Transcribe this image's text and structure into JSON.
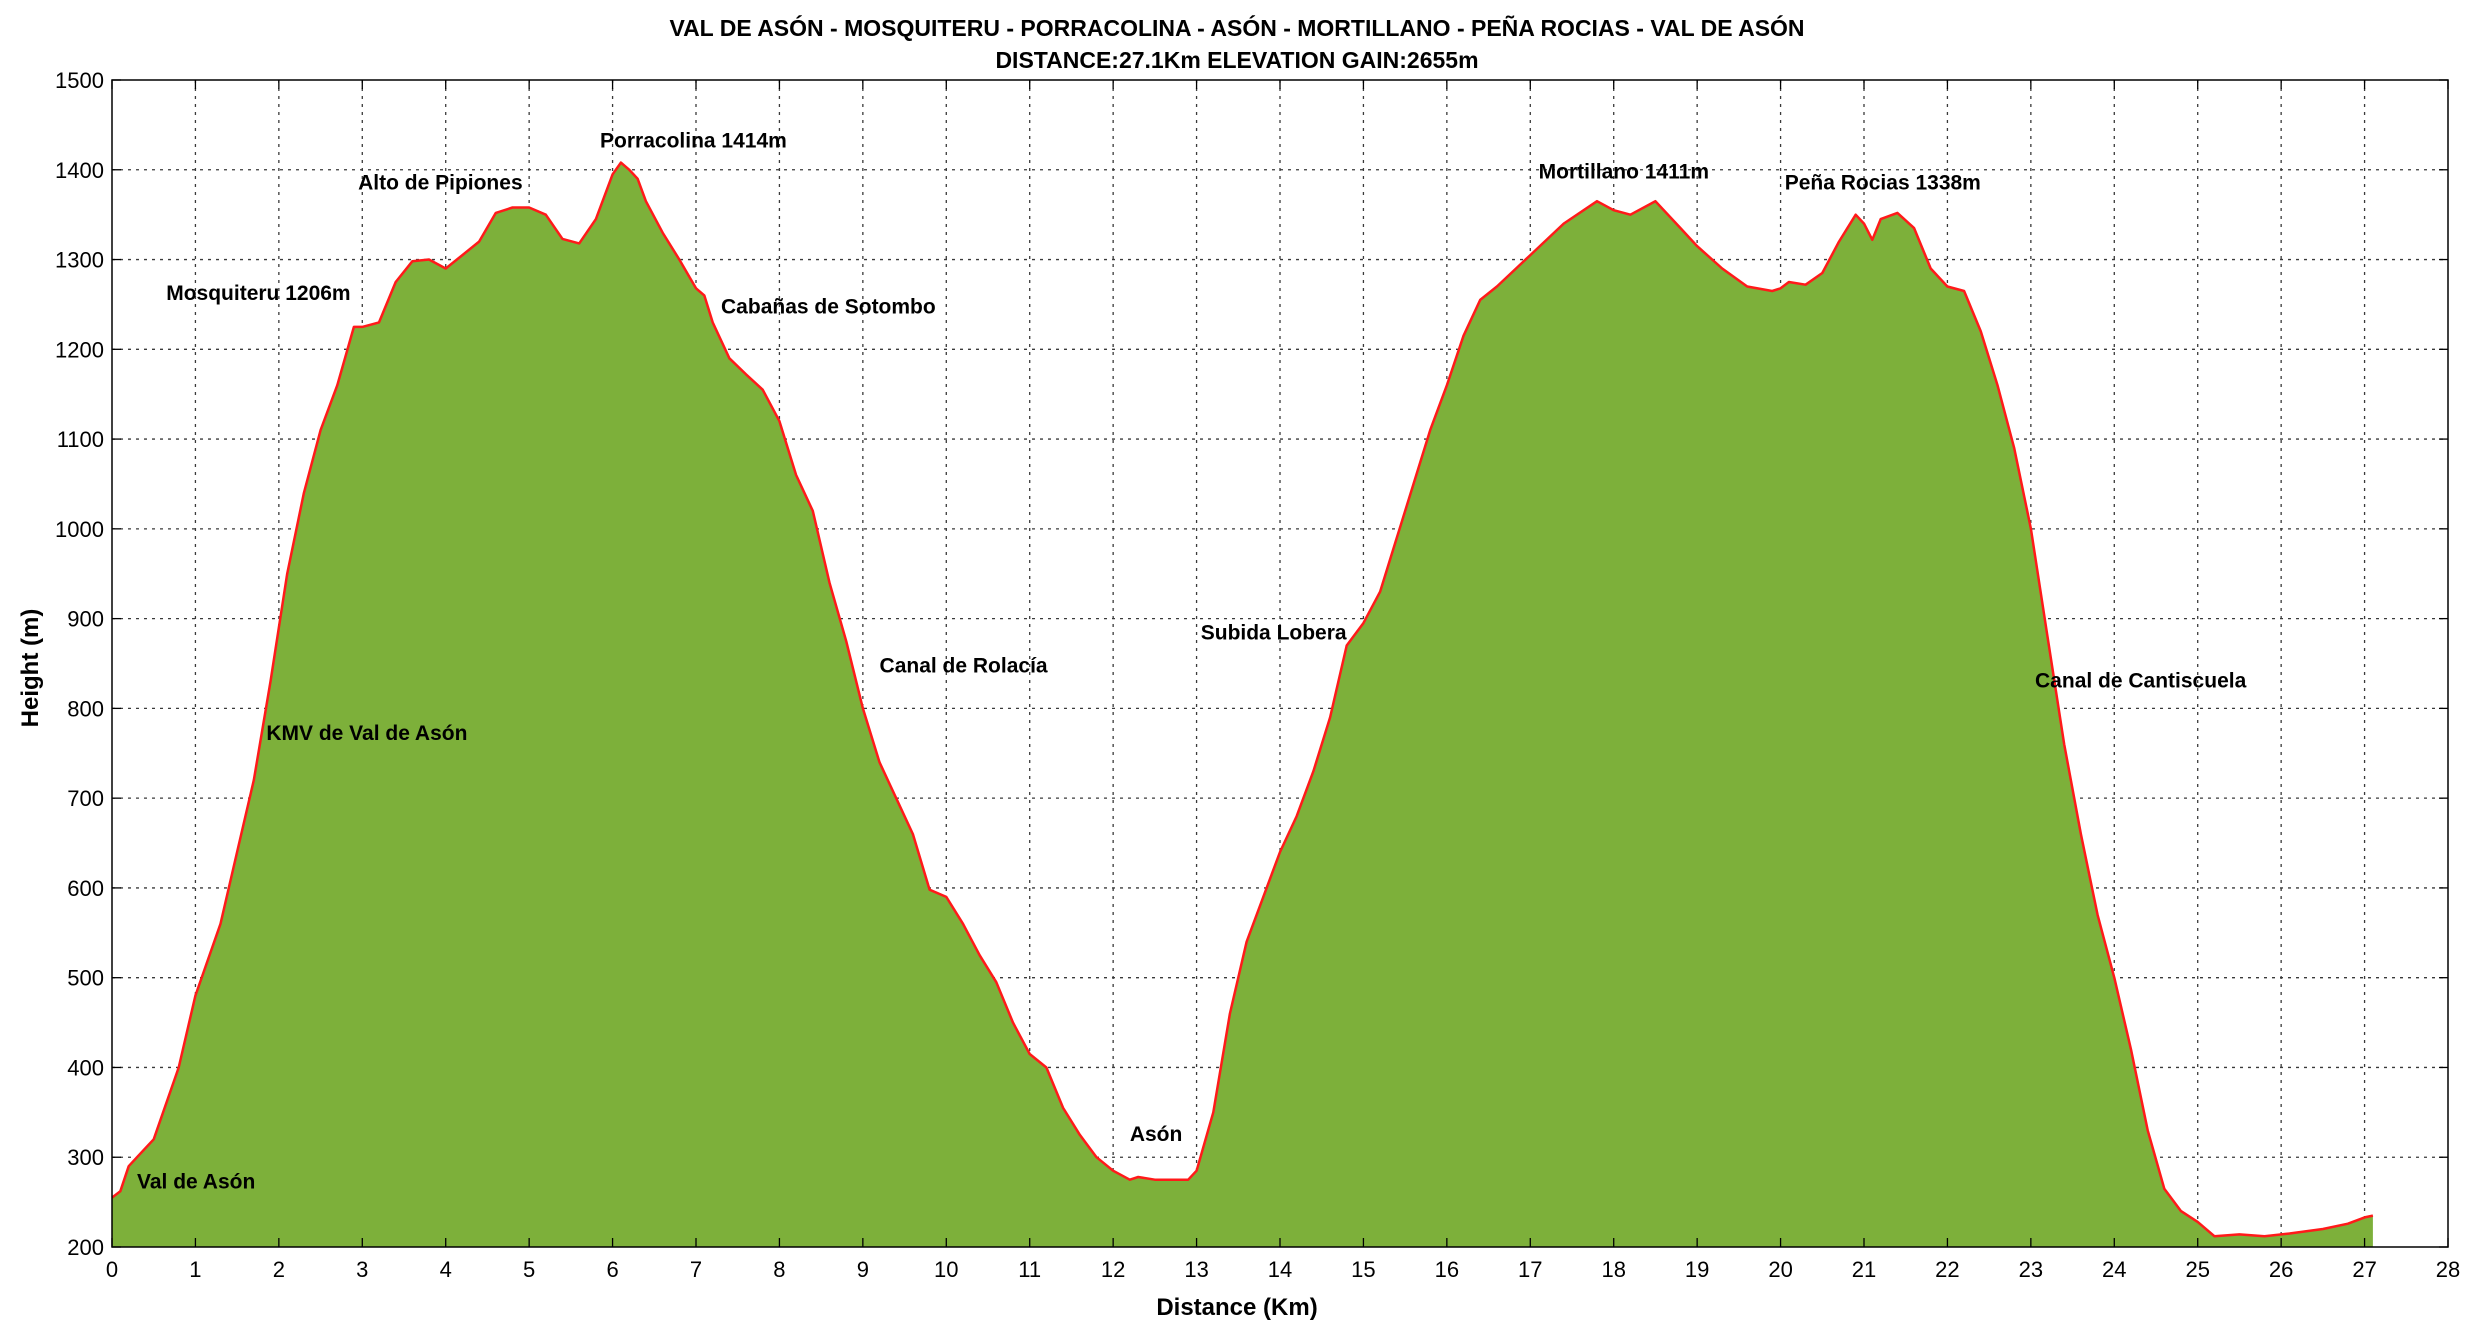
{
  "chart_data": {
    "type": "area",
    "title": "VAL DE ASÓN - MOSQUITERU - PORRACOLINA - ASÓN - MORTILLANO - PEÑA ROCIAS - VAL DE ASÓN",
    "subtitle": "DISTANCE:27.1Km   ELEVATION GAIN:2655m",
    "xlabel": "Distance (Km)",
    "ylabel": "Height (m)",
    "xlim": [
      0,
      28
    ],
    "ylim": [
      200,
      1500
    ],
    "xticks": [
      0,
      1,
      2,
      3,
      4,
      5,
      6,
      7,
      8,
      9,
      10,
      11,
      12,
      13,
      14,
      15,
      16,
      17,
      18,
      19,
      20,
      21,
      22,
      23,
      24,
      25,
      26,
      27,
      28
    ],
    "yticks": [
      200,
      300,
      400,
      500,
      600,
      700,
      800,
      900,
      1000,
      1100,
      1200,
      1300,
      1400,
      1500
    ],
    "grid": true,
    "fill_color": "#7db03a",
    "line_color": "#ff1a1a",
    "series": [
      {
        "x": [
          0,
          0.1,
          0.2,
          0.3,
          0.5,
          0.8,
          1.0,
          1.3,
          1.5,
          1.7,
          1.9,
          2.1,
          2.3,
          2.5,
          2.7,
          2.9,
          3.0,
          3.2,
          3.4,
          3.6,
          3.8,
          4.0,
          4.2,
          4.4,
          4.6,
          4.8,
          5.0,
          5.2,
          5.4,
          5.6,
          5.8,
          6.0,
          6.1,
          6.2,
          6.3,
          6.4,
          6.6,
          6.8,
          7.0,
          7.1,
          7.2,
          7.4,
          7.6,
          7.8,
          8.0,
          8.2,
          8.4,
          8.6,
          8.8,
          9.0,
          9.2,
          9.4,
          9.6,
          9.8,
          10.0,
          10.2,
          10.4,
          10.6,
          10.8,
          11.0,
          11.2,
          11.4,
          11.6,
          11.8,
          12.0,
          12.2,
          12.3,
          12.5,
          12.7,
          12.9,
          13.0,
          13.2,
          13.4,
          13.6,
          13.8,
          14.0,
          14.2,
          14.4,
          14.6,
          14.8,
          15.0,
          15.2,
          15.4,
          15.6,
          15.8,
          16.0,
          16.2,
          16.4,
          16.6,
          17.0,
          17.4,
          17.8,
          18.0,
          18.2,
          18.5,
          18.8,
          19.0,
          19.3,
          19.6,
          19.9,
          20.0,
          20.1,
          20.3,
          20.5,
          20.7,
          20.9,
          21.0,
          21.1,
          21.2,
          21.4,
          21.6,
          21.8,
          22.0,
          22.2,
          22.4,
          22.6,
          22.8,
          23.0,
          23.2,
          23.4,
          23.6,
          23.8,
          24.0,
          24.2,
          24.4,
          24.6,
          24.8,
          25.0,
          25.2,
          25.5,
          25.8,
          26.1,
          26.5,
          26.8,
          27.0,
          27.1
        ],
        "y": [
          255,
          262,
          290,
          300,
          320,
          400,
          480,
          560,
          640,
          720,
          830,
          950,
          1040,
          1110,
          1160,
          1225,
          1225,
          1230,
          1275,
          1298,
          1300,
          1290,
          1305,
          1320,
          1352,
          1358,
          1358,
          1350,
          1323,
          1318,
          1345,
          1395,
          1408,
          1400,
          1390,
          1365,
          1330,
          1300,
          1268,
          1260,
          1230,
          1190,
          1172,
          1155,
          1120,
          1060,
          1020,
          940,
          875,
          800,
          740,
          700,
          660,
          598,
          590,
          560,
          525,
          495,
          450,
          415,
          400,
          355,
          325,
          300,
          285,
          275,
          278,
          275,
          275,
          275,
          285,
          350,
          460,
          540,
          590,
          640,
          680,
          730,
          790,
          870,
          895,
          930,
          990,
          1050,
          1110,
          1160,
          1215,
          1255,
          1270,
          1305,
          1340,
          1365,
          1355,
          1350,
          1365,
          1335,
          1315,
          1290,
          1270,
          1265,
          1268,
          1275,
          1272,
          1285,
          1320,
          1350,
          1340,
          1322,
          1345,
          1352,
          1335,
          1290,
          1270,
          1265,
          1220,
          1160,
          1090,
          1000,
          880,
          760,
          660,
          570,
          500,
          420,
          330,
          265,
          240,
          228,
          212,
          214,
          212,
          215,
          220,
          226,
          233,
          235
        ]
      }
    ],
    "annotations": [
      {
        "text": "Val de Asón",
        "x": 0.3,
        "y": 265
      },
      {
        "text": "KMV de Val de Asón",
        "x": 1.85,
        "y": 765
      },
      {
        "text": "Mosquiteru 1206m",
        "x": 0.65,
        "y": 1255
      },
      {
        "text": "Alto de Pipiones",
        "x": 2.95,
        "y": 1378
      },
      {
        "text": "Porracolina  1414m",
        "x": 5.85,
        "y": 1425
      },
      {
        "text": "Cabañas de Sotombo",
        "x": 7.3,
        "y": 1240
      },
      {
        "text": "Canal de Rolacía",
        "x": 9.2,
        "y": 840
      },
      {
        "text": "Asón",
        "x": 12.2,
        "y": 318
      },
      {
        "text": "Subida Lobera",
        "x": 13.05,
        "y": 877
      },
      {
        "text": "Mortillano 1411m",
        "x": 17.1,
        "y": 1390
      },
      {
        "text": "Peña Rocias 1338m",
        "x": 20.05,
        "y": 1378
      },
      {
        "text": "Canal de Cantiscuela",
        "x": 23.05,
        "y": 823
      }
    ]
  }
}
